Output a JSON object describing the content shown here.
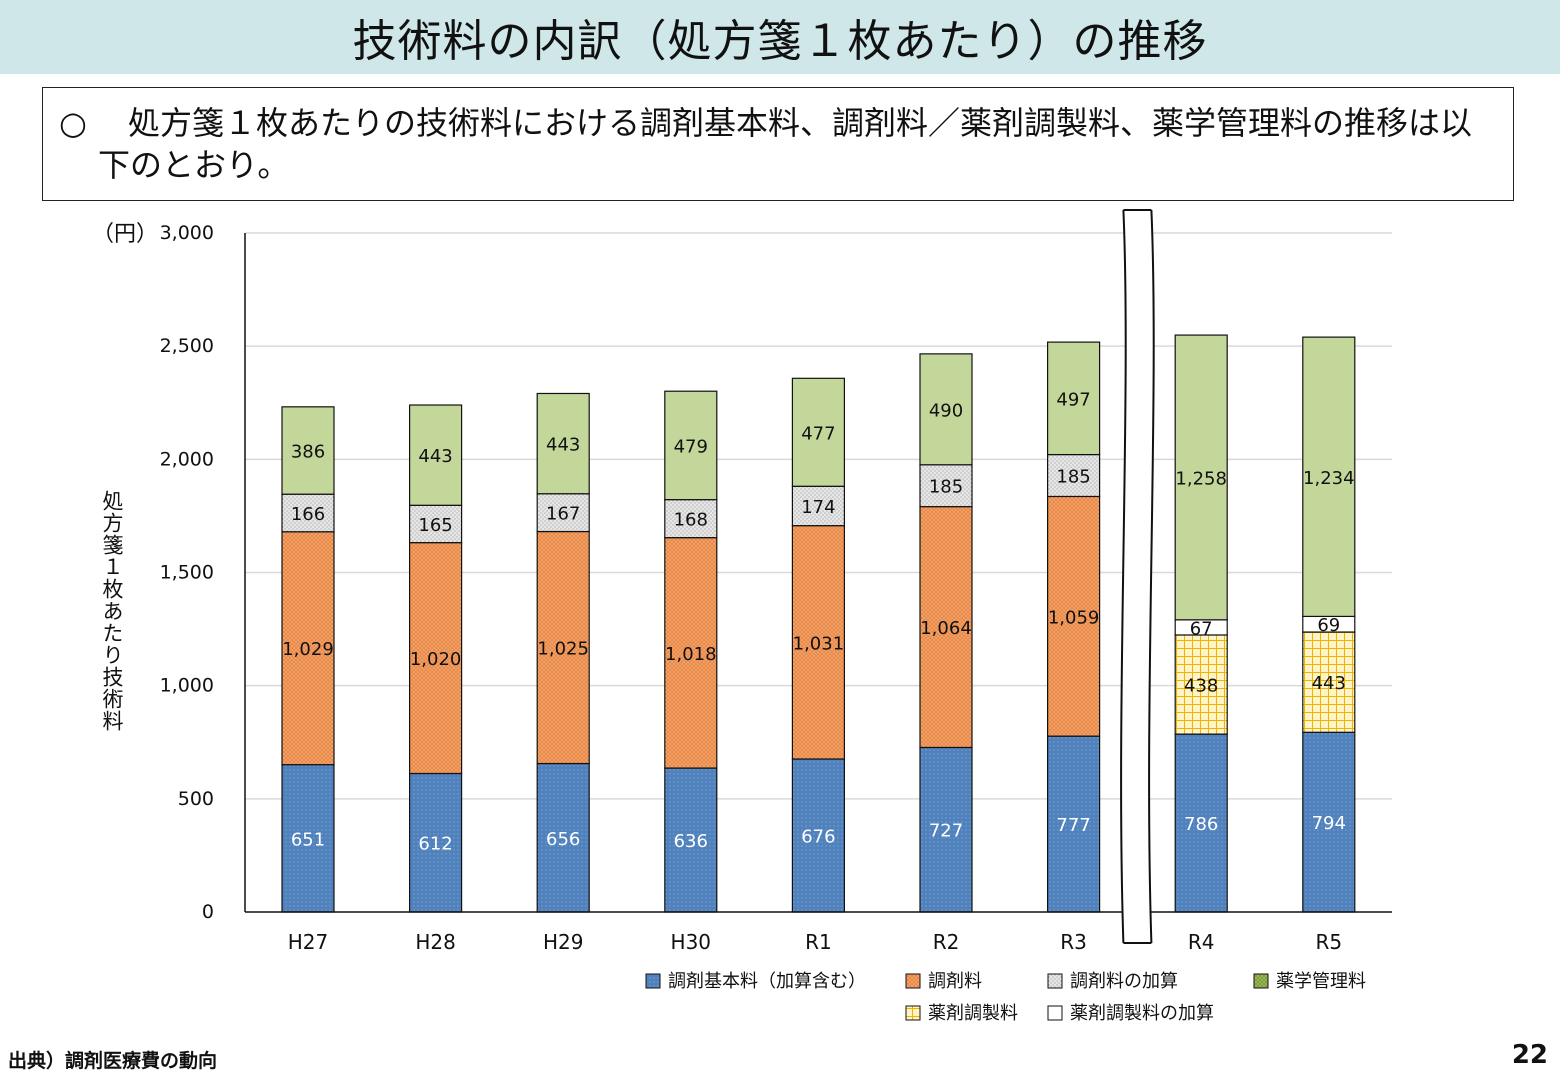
{
  "page": {
    "title": "技術料の内訳（処方箋１枚あたり）の推移",
    "bullet": "○",
    "note": "処方箋１枚あたりの技術料における調剤基本料、調剤料／薬剤調製料、薬学管理料の推移は以下のとおり。",
    "source": "出典）調剤医療費の動向",
    "page_number": "22"
  },
  "chart_data": {
    "type": "bar",
    "stacked": true,
    "title": "",
    "unit_label": "（円）",
    "ylabel": "処方箋１枚あたり技術料",
    "xlabel": "",
    "ylim": [
      0,
      3000
    ],
    "yticks": [
      0,
      500,
      1000,
      1500,
      2000,
      2500,
      3000
    ],
    "ytick_labels": [
      "0",
      "500",
      "1,000",
      "1,500",
      "2,000",
      "2,500",
      "3,000"
    ],
    "grid": true,
    "axis_break_after": "R3",
    "categories": [
      "H27",
      "H28",
      "H29",
      "H30",
      "R1",
      "R2",
      "R3",
      "R4",
      "R5"
    ],
    "series": [
      {
        "name": "調剤基本料（加算含む）",
        "key": "base",
        "color": "#4f81bd",
        "pattern": "dots",
        "values": [
          651,
          612,
          656,
          636,
          676,
          727,
          777,
          786,
          794
        ],
        "labels": [
          "651",
          "612",
          "656",
          "636",
          "676",
          "727",
          "777",
          "786",
          "794"
        ]
      },
      {
        "name": "調剤料",
        "key": "dispensing",
        "color": "#f4a46a",
        "pattern": "mesh",
        "values": [
          1029,
          1020,
          1025,
          1018,
          1031,
          1064,
          1059,
          null,
          null
        ],
        "labels": [
          "1,029",
          "1,020",
          "1,025",
          "1,018",
          "1,031",
          "1,064",
          "1,059",
          "",
          ""
        ]
      },
      {
        "name": "調剤料の加算",
        "key": "dispensing_add",
        "color": "#e0e0e0",
        "pattern": "grey-dots",
        "values": [
          166,
          165,
          167,
          168,
          174,
          185,
          185,
          null,
          null
        ],
        "labels": [
          "166",
          "165",
          "167",
          "168",
          "174",
          "185",
          "185",
          "",
          ""
        ]
      },
      {
        "name": "薬剤調製料",
        "key": "prep",
        "color": "#fff2c0",
        "pattern": "grid",
        "values": [
          null,
          null,
          null,
          null,
          null,
          null,
          null,
          438,
          443
        ],
        "labels": [
          "",
          "",
          "",
          "",
          "",
          "",
          "",
          "438",
          "443"
        ]
      },
      {
        "name": "薬剤調製料の加算",
        "key": "prep_add",
        "color": "#ffffff",
        "pattern": "none",
        "values": [
          null,
          null,
          null,
          null,
          null,
          null,
          null,
          67,
          69
        ],
        "labels": [
          "",
          "",
          "",
          "",
          "",
          "",
          "",
          "67",
          "69"
        ]
      },
      {
        "name": "薬学管理料",
        "key": "mgmt",
        "color": "#c4d79b",
        "pattern": "solid",
        "values": [
          386,
          443,
          443,
          479,
          477,
          490,
          497,
          1258,
          1234
        ],
        "labels": [
          "386",
          "443",
          "443",
          "479",
          "477",
          "490",
          "497",
          "1,258",
          "1,234"
        ]
      }
    ],
    "legend_rows": [
      [
        "調剤基本料（加算含む）",
        "調剤料",
        "調剤料の加算",
        "薬学管理料"
      ],
      [
        "薬剤調製料",
        "薬剤調製料の加算"
      ]
    ],
    "legend_position": "bottom-right"
  }
}
